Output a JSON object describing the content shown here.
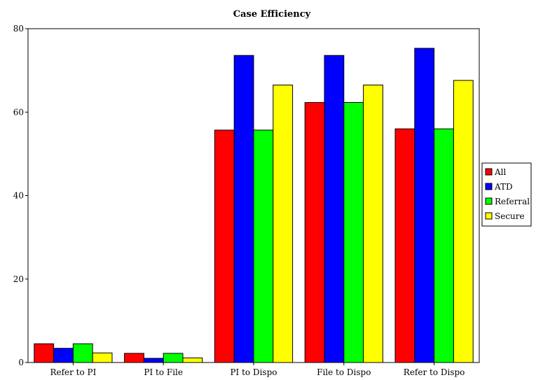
{
  "chart_data": {
    "type": "bar",
    "title": "Case Efficiency",
    "xlabel": "",
    "ylabel": "",
    "ylim": [
      0,
      80
    ],
    "yticks": [
      0,
      20,
      40,
      60,
      80
    ],
    "categories": [
      "Refer to PI",
      "PI to File",
      "PI to Dispo",
      "File to Dispo",
      "Refer to Dispo"
    ],
    "series": [
      {
        "name": "All",
        "color": "#ff0000",
        "values": [
          4.5,
          2.2,
          55.7,
          62.3,
          56.0
        ]
      },
      {
        "name": "ATD",
        "color": "#0000ff",
        "values": [
          3.4,
          1.0,
          73.6,
          73.6,
          75.3
        ]
      },
      {
        "name": "Referral",
        "color": "#00ff00",
        "values": [
          4.5,
          2.2,
          55.7,
          62.3,
          56.0
        ]
      },
      {
        "name": "Secure",
        "color": "#ffff00",
        "values": [
          2.3,
          1.1,
          66.5,
          66.5,
          67.6
        ]
      }
    ],
    "grid": false,
    "legend_position": "right"
  }
}
